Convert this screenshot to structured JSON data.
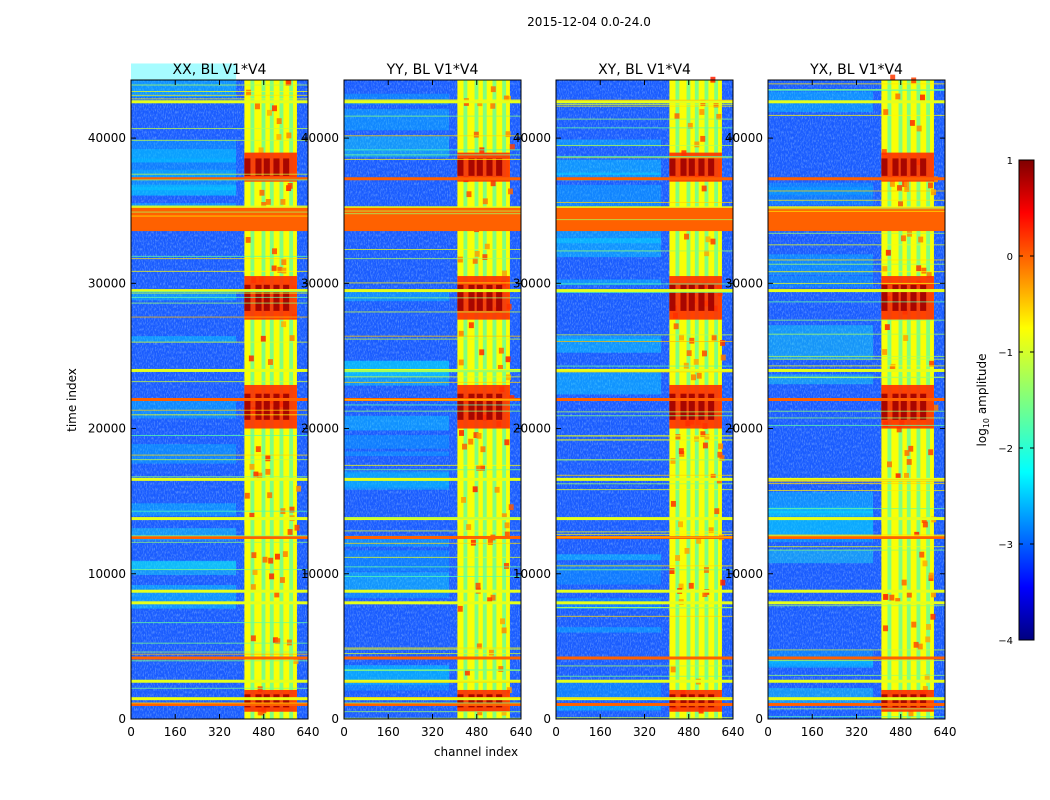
{
  "figure_title": "2015-12-04 0.0-24.0",
  "chart_data": {
    "type": "heatmap",
    "suptitle": "2015-12-04 0.0-24.0",
    "xlabel": "channel index",
    "ylabel": "time index",
    "xlim": [
      0,
      640
    ],
    "ylim": [
      0,
      44000
    ],
    "xticks": [
      0,
      160,
      320,
      480,
      640
    ],
    "xtick_labels": [
      "0",
      "160",
      "320",
      "480",
      "640"
    ],
    "yticks": [
      0,
      10000,
      20000,
      30000,
      40000
    ],
    "ytick_labels": [
      "0",
      "10000",
      "20000",
      "30000",
      "40000"
    ],
    "panels": [
      {
        "title": "XX, BL V1*V4",
        "polarization": "XX",
        "baseline": "V1*V4"
      },
      {
        "title": "YY, BL V1*V4",
        "polarization": "YY",
        "baseline": "V1*V4"
      },
      {
        "title": "XY, BL V1*V4",
        "polarization": "XY",
        "baseline": "V1*V4"
      },
      {
        "title": "YX, BL V1*V4",
        "polarization": "YX",
        "baseline": "V1*V4"
      }
    ],
    "features": {
      "rfi_channel_band": [
        410,
        600
      ],
      "rfi_channel_columns": [
        440,
        480,
        510,
        545,
        580
      ],
      "flagged_time_rows": [
        1000,
        1400,
        2600,
        4200,
        8000,
        8800,
        12500,
        13800,
        16500,
        22000,
        24000,
        29500,
        33700,
        34600,
        35200,
        37200,
        42500
      ],
      "strong_time_bursts": [
        [
          500,
          2000
        ],
        [
          20000,
          23000
        ],
        [
          27500,
          30500
        ],
        [
          37000,
          39000
        ]
      ]
    },
    "colorbar": {
      "label": "log",
      "label_subscript": "10",
      "label_suffix": " amplitude",
      "min": -4,
      "max": 1,
      "ticks": [
        1,
        0,
        -1,
        -2,
        -3,
        -4
      ],
      "tick_labels": [
        "1",
        "0",
        "−1",
        "−2",
        "−3",
        "−4"
      ],
      "colormap": "jet"
    }
  }
}
